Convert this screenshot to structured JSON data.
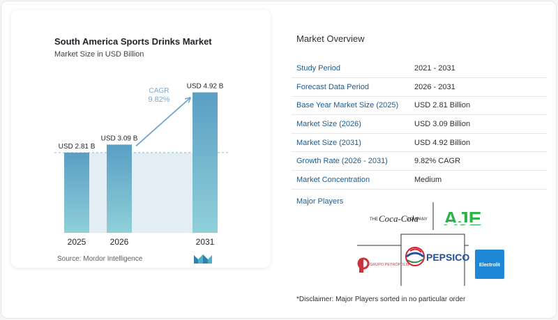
{
  "chart_data": {
    "type": "bar",
    "title": "South America Sports Drinks Market",
    "subtitle": "Market Size in USD Billion",
    "categories": [
      "2025",
      "2026",
      "2031"
    ],
    "values": [
      2.81,
      3.09,
      4.92
    ],
    "value_labels": [
      "USD 2.81 B",
      "USD 3.09 B",
      "USD 4.92 B"
    ],
    "ylim": [
      0,
      5.2
    ],
    "cagr_label": "CAGR",
    "cagr_value": "9.82%",
    "colors": {
      "bar_top": "#5a9ec4",
      "bar_bottom": "#8fd0d8",
      "band": "#e3edf4",
      "arrow": "#6fa6cc",
      "cagr_text": "#7aa7c7"
    }
  },
  "source_text": "Source:  Mordor Intelligence",
  "overview": {
    "title": "Market Overview",
    "rows": [
      {
        "key": "Study Period",
        "value": "2021 - 2031"
      },
      {
        "key": "Forecast Data Period",
        "value": "2026 - 2031"
      },
      {
        "key": "Base Year Market Size (2025)",
        "value": "USD 2.81 Billion"
      },
      {
        "key": "Market Size (2026)",
        "value": "USD 3.09 Billion"
      },
      {
        "key": "Market Size (2031)",
        "value": "USD 4.92 Billion"
      },
      {
        "key": "Growth Rate (2026 - 2031)",
        "value": "9.82% CAGR"
      },
      {
        "key": "Market Concentration",
        "value": "Medium"
      }
    ]
  },
  "major_players": {
    "title": "Major Players",
    "logos": [
      {
        "name": "coca-cola-logo",
        "text_left": "THE",
        "text_mid": "Coca-Cola",
        "text_right": "COMPANY"
      },
      {
        "name": "aje-logo",
        "text": "AJE"
      },
      {
        "name": "grupo-petropolis-logo",
        "text": "GRUPO PETRÓPOLIS"
      },
      {
        "name": "pepsico-logo",
        "text": "PEPSICO"
      },
      {
        "name": "electrolit-logo",
        "text": "Electrolit"
      }
    ]
  },
  "disclaimer": "*Disclaimer: Major Players sorted in no particular order"
}
